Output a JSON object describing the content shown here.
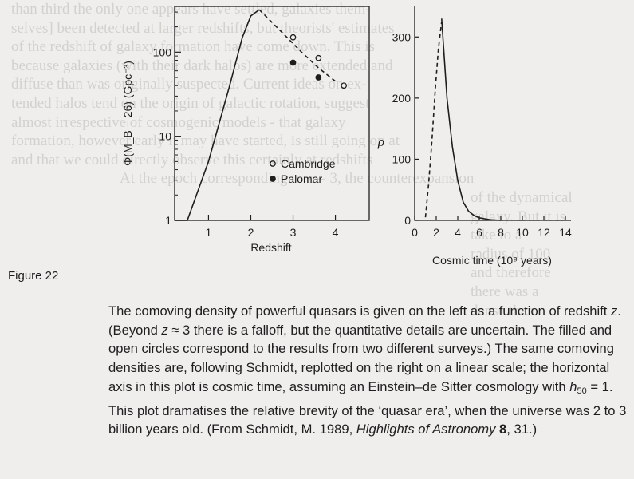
{
  "figure": {
    "label": "Figure 22"
  },
  "caption": {
    "part1": "The comoving density of powerful quasars is given on the left as a function of redshift ",
    "z1": "z",
    "part2": ". (Beyond ",
    "z2": "z",
    "part3": " ≈ 3 there is a falloff, but the quantitative details are uncertain. The filled and open circles correspond to the results from two different surveys.) The same comoving densities are, following Schmidt, replotted on the right on a linear scale; the horizontal axis in this plot is cosmic time, assuming an Einstein–de Sitter cosmology with ",
    "h": "h",
    "h_sub": "50",
    "part4": " = 1. This plot dramatises the relative brevity of the ‘quasar era’, when the universe was 2 to 3 billion years old. (From Schmidt, M. 1989, ",
    "journal": "Highlights of Astronomy",
    "volume": "8",
    "part5": ", 31.)"
  },
  "background_lines": [
    "than third the only one appears have settled, galaxies them-",
    "selves] been detected at larger redshifts, but theorists' estimates",
    "of the redshift of galaxy formation have come down. This is",
    "because galaxies (with their dark halos) are more extended and",
    "diffuse than was originally suspected. Current ideas on ex-",
    "tended halos tend on the origin of galactic rotation, suggest",
    "almost irrespective of cosmogenic models - that galaxy",
    "formation, however early it may have started, is still going on at",
    "and that we could directly observe this certainly at redshifts",
    "",
    "",
    "",
    "",
    "",
    "At the epoch corresponding to z = 3, the counterexpansion",
    "of the dynamical",
    "galaxy. But it is",
    "take to a",
    "radius of 100",
    "and therefore",
    "there was a",
    "dense than"
  ],
  "chart_data": [
    {
      "type": "scatter",
      "title": "",
      "xlabel": "Redshift",
      "ylabel": "Φ(M_B − 26) (Gpc⁻³)",
      "x_ticks": [
        "1",
        "2",
        "3",
        "4"
      ],
      "y_ticks": [
        "1",
        "10",
        "100"
      ],
      "xlim": [
        0.2,
        4.8
      ],
      "y_scale": "log",
      "ylim": [
        1,
        350
      ],
      "grid": false,
      "legend_position": "inside-right",
      "curve": {
        "name": "",
        "style": "solid",
        "x": [
          0.2,
          0.5,
          1.0,
          1.5,
          1.8,
          2.0,
          2.2
        ],
        "y": [
          1,
          1,
          5,
          40,
          150,
          270,
          320
        ]
      },
      "curve_falloff": {
        "name": "",
        "style": "dashed",
        "x": [
          2.2,
          2.8,
          3.2,
          3.6,
          4.0
        ],
        "y": [
          320,
          160,
          100,
          65,
          45
        ]
      },
      "series": [
        {
          "name": "Cambridge",
          "marker": "open-circle",
          "x": [
            3.0,
            3.6,
            4.2
          ],
          "y": [
            150,
            85,
            40
          ]
        },
        {
          "name": "Palomar",
          "marker": "filled-circle",
          "x": [
            3.0,
            3.6
          ],
          "y": [
            75,
            50
          ]
        }
      ]
    },
    {
      "type": "line",
      "title": "",
      "xlabel": "Cosmic time (10⁹ years)",
      "ylabel": "ρ",
      "x_ticks": [
        "0",
        "2",
        "4",
        "6",
        "8",
        "10",
        "12",
        "14"
      ],
      "y_ticks": [
        "0",
        "100",
        "200",
        "300"
      ],
      "xlim": [
        0,
        14
      ],
      "ylim": [
        0,
        350
      ],
      "grid": false,
      "series": [
        {
          "name": "",
          "style": "dashed",
          "x": [
            1.0,
            1.3,
            1.6,
            1.9,
            2.2,
            2.5
          ],
          "y": [
            5,
            60,
            130,
            210,
            280,
            325
          ]
        },
        {
          "name": "",
          "style": "solid",
          "x": [
            2.5,
            3.0,
            3.5,
            4.0,
            4.5,
            5.0,
            5.5,
            6.0,
            7.0,
            8.0
          ],
          "y": [
            330,
            200,
            120,
            65,
            30,
            15,
            8,
            4,
            1,
            0
          ]
        }
      ]
    }
  ],
  "colors": {
    "ink": "#1e1e1e",
    "paper": "#efeeec",
    "bleed": "#d3d1cd"
  }
}
